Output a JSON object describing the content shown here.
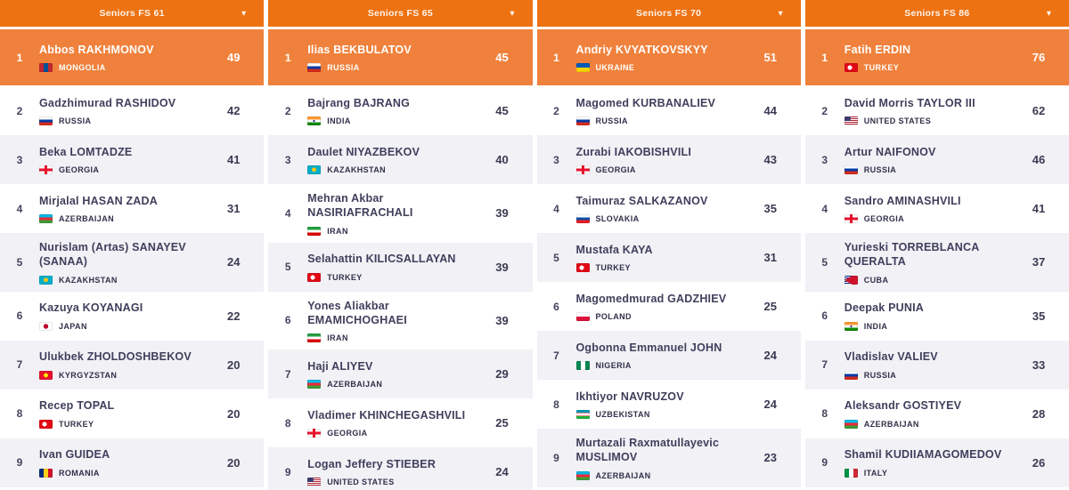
{
  "icons": {
    "dropdown_caret": "▾"
  },
  "colors": {
    "header_bg": "#ed7212",
    "leader_row_bg": "#f0813c",
    "row_alt_bg": "#f1f1f6",
    "row_bg": "#ffffff",
    "name_text": "#3f3f5c"
  },
  "columns": [
    {
      "header": "Seniors FS 61",
      "rows": [
        {
          "rank": "1",
          "name": "Abbos RAKHMONOV",
          "country": "MONGOLIA",
          "flag": "mn",
          "points": "49"
        },
        {
          "rank": "2",
          "name": "Gadzhimurad RASHIDOV",
          "country": "RUSSIA",
          "flag": "ru",
          "points": "42"
        },
        {
          "rank": "3",
          "name": "Beka LOMTADZE",
          "country": "GEORGIA",
          "flag": "ge",
          "points": "41"
        },
        {
          "rank": "4",
          "name": "Mirjalal HASAN ZADA",
          "country": "AZERBAIJAN",
          "flag": "az",
          "points": "31"
        },
        {
          "rank": "5",
          "name": "Nurislam (Artas) SANAYEV (SANAA)",
          "country": "KAZAKHSTAN",
          "flag": "kz",
          "points": "24"
        },
        {
          "rank": "6",
          "name": "Kazuya KOYANAGI",
          "country": "JAPAN",
          "flag": "jp",
          "points": "22"
        },
        {
          "rank": "7",
          "name": "Ulukbek ZHOLDOSHBEKOV",
          "country": "KYRGYZSTAN",
          "flag": "kg",
          "points": "20"
        },
        {
          "rank": "8",
          "name": "Recep TOPAL",
          "country": "TURKEY",
          "flag": "tr",
          "points": "20"
        },
        {
          "rank": "9",
          "name": "Ivan GUIDEA",
          "country": "ROMANIA",
          "flag": "ro",
          "points": "20"
        }
      ]
    },
    {
      "header": "Seniors FS 65",
      "rows": [
        {
          "rank": "1",
          "name": "Ilias BEKBULATOV",
          "country": "RUSSIA",
          "flag": "ru",
          "points": "45"
        },
        {
          "rank": "2",
          "name": "Bajrang BAJRANG",
          "country": "INDIA",
          "flag": "in",
          "points": "45"
        },
        {
          "rank": "3",
          "name": "Daulet NIYAZBEKOV",
          "country": "KAZAKHSTAN",
          "flag": "kz",
          "points": "40"
        },
        {
          "rank": "4",
          "name": "Mehran Akbar NASIRIAFRACHALI",
          "country": "IRAN",
          "flag": "ir",
          "points": "39"
        },
        {
          "rank": "5",
          "name": "Selahattin KILICSALLAYAN",
          "country": "TURKEY",
          "flag": "tr",
          "points": "39"
        },
        {
          "rank": "6",
          "name": "Yones Aliakbar EMAMICHOGHAEI",
          "country": "IRAN",
          "flag": "ir",
          "points": "39"
        },
        {
          "rank": "7",
          "name": "Haji ALIYEV",
          "country": "AZERBAIJAN",
          "flag": "az",
          "points": "29"
        },
        {
          "rank": "8",
          "name": "Vladimer KHINCHEGASHVILI",
          "country": "GEORGIA",
          "flag": "ge",
          "points": "25"
        },
        {
          "rank": "9",
          "name": "Logan Jeffery STIEBER",
          "country": "UNITED STATES",
          "flag": "us",
          "points": "24"
        }
      ]
    },
    {
      "header": "Seniors FS 70",
      "rows": [
        {
          "rank": "1",
          "name": "Andriy KVYATKOVSKYY",
          "country": "UKRAINE",
          "flag": "ua",
          "points": "51"
        },
        {
          "rank": "2",
          "name": "Magomed KURBANALIEV",
          "country": "RUSSIA",
          "flag": "ru",
          "points": "44"
        },
        {
          "rank": "3",
          "name": "Zurabi IAKOBISHVILI",
          "country": "GEORGIA",
          "flag": "ge",
          "points": "43"
        },
        {
          "rank": "4",
          "name": "Taimuraz SALKAZANOV",
          "country": "SLOVAKIA",
          "flag": "sk",
          "points": "35"
        },
        {
          "rank": "5",
          "name": "Mustafa KAYA",
          "country": "TURKEY",
          "flag": "tr",
          "points": "31"
        },
        {
          "rank": "6",
          "name": "Magomedmurad GADZHIEV",
          "country": "POLAND",
          "flag": "pl",
          "points": "25"
        },
        {
          "rank": "7",
          "name": "Ogbonna Emmanuel JOHN",
          "country": "NIGERIA",
          "flag": "ng",
          "points": "24"
        },
        {
          "rank": "8",
          "name": "Ikhtiyor NAVRUZOV",
          "country": "UZBEKISTAN",
          "flag": "uz",
          "points": "24"
        },
        {
          "rank": "9",
          "name": "Murtazali Raxmatullayevic MUSLIMOV",
          "country": "AZERBAIJAN",
          "flag": "az",
          "points": "23"
        }
      ]
    },
    {
      "header": "Seniors FS 86",
      "rows": [
        {
          "rank": "1",
          "name": "Fatih ERDIN",
          "country": "TURKEY",
          "flag": "tr",
          "points": "76"
        },
        {
          "rank": "2",
          "name": "David Morris TAYLOR III",
          "country": "UNITED STATES",
          "flag": "us",
          "points": "62"
        },
        {
          "rank": "3",
          "name": "Artur NAIFONOV",
          "country": "RUSSIA",
          "flag": "ru",
          "points": "46"
        },
        {
          "rank": "4",
          "name": "Sandro AMINASHVILI",
          "country": "GEORGIA",
          "flag": "ge",
          "points": "41"
        },
        {
          "rank": "5",
          "name": "Yurieski TORREBLANCA QUERALTA",
          "country": "CUBA",
          "flag": "cu",
          "points": "37"
        },
        {
          "rank": "6",
          "name": "Deepak PUNIA",
          "country": "INDIA",
          "flag": "in",
          "points": "35"
        },
        {
          "rank": "7",
          "name": "Vladislav VALIEV",
          "country": "RUSSIA",
          "flag": "ru",
          "points": "33"
        },
        {
          "rank": "8",
          "name": "Aleksandr GOSTIYEV",
          "country": "AZERBAIJAN",
          "flag": "az",
          "points": "28"
        },
        {
          "rank": "9",
          "name": "Shamil KUDIIAMAGOMEDOV",
          "country": "ITALY",
          "flag": "it",
          "points": "26"
        }
      ]
    }
  ]
}
